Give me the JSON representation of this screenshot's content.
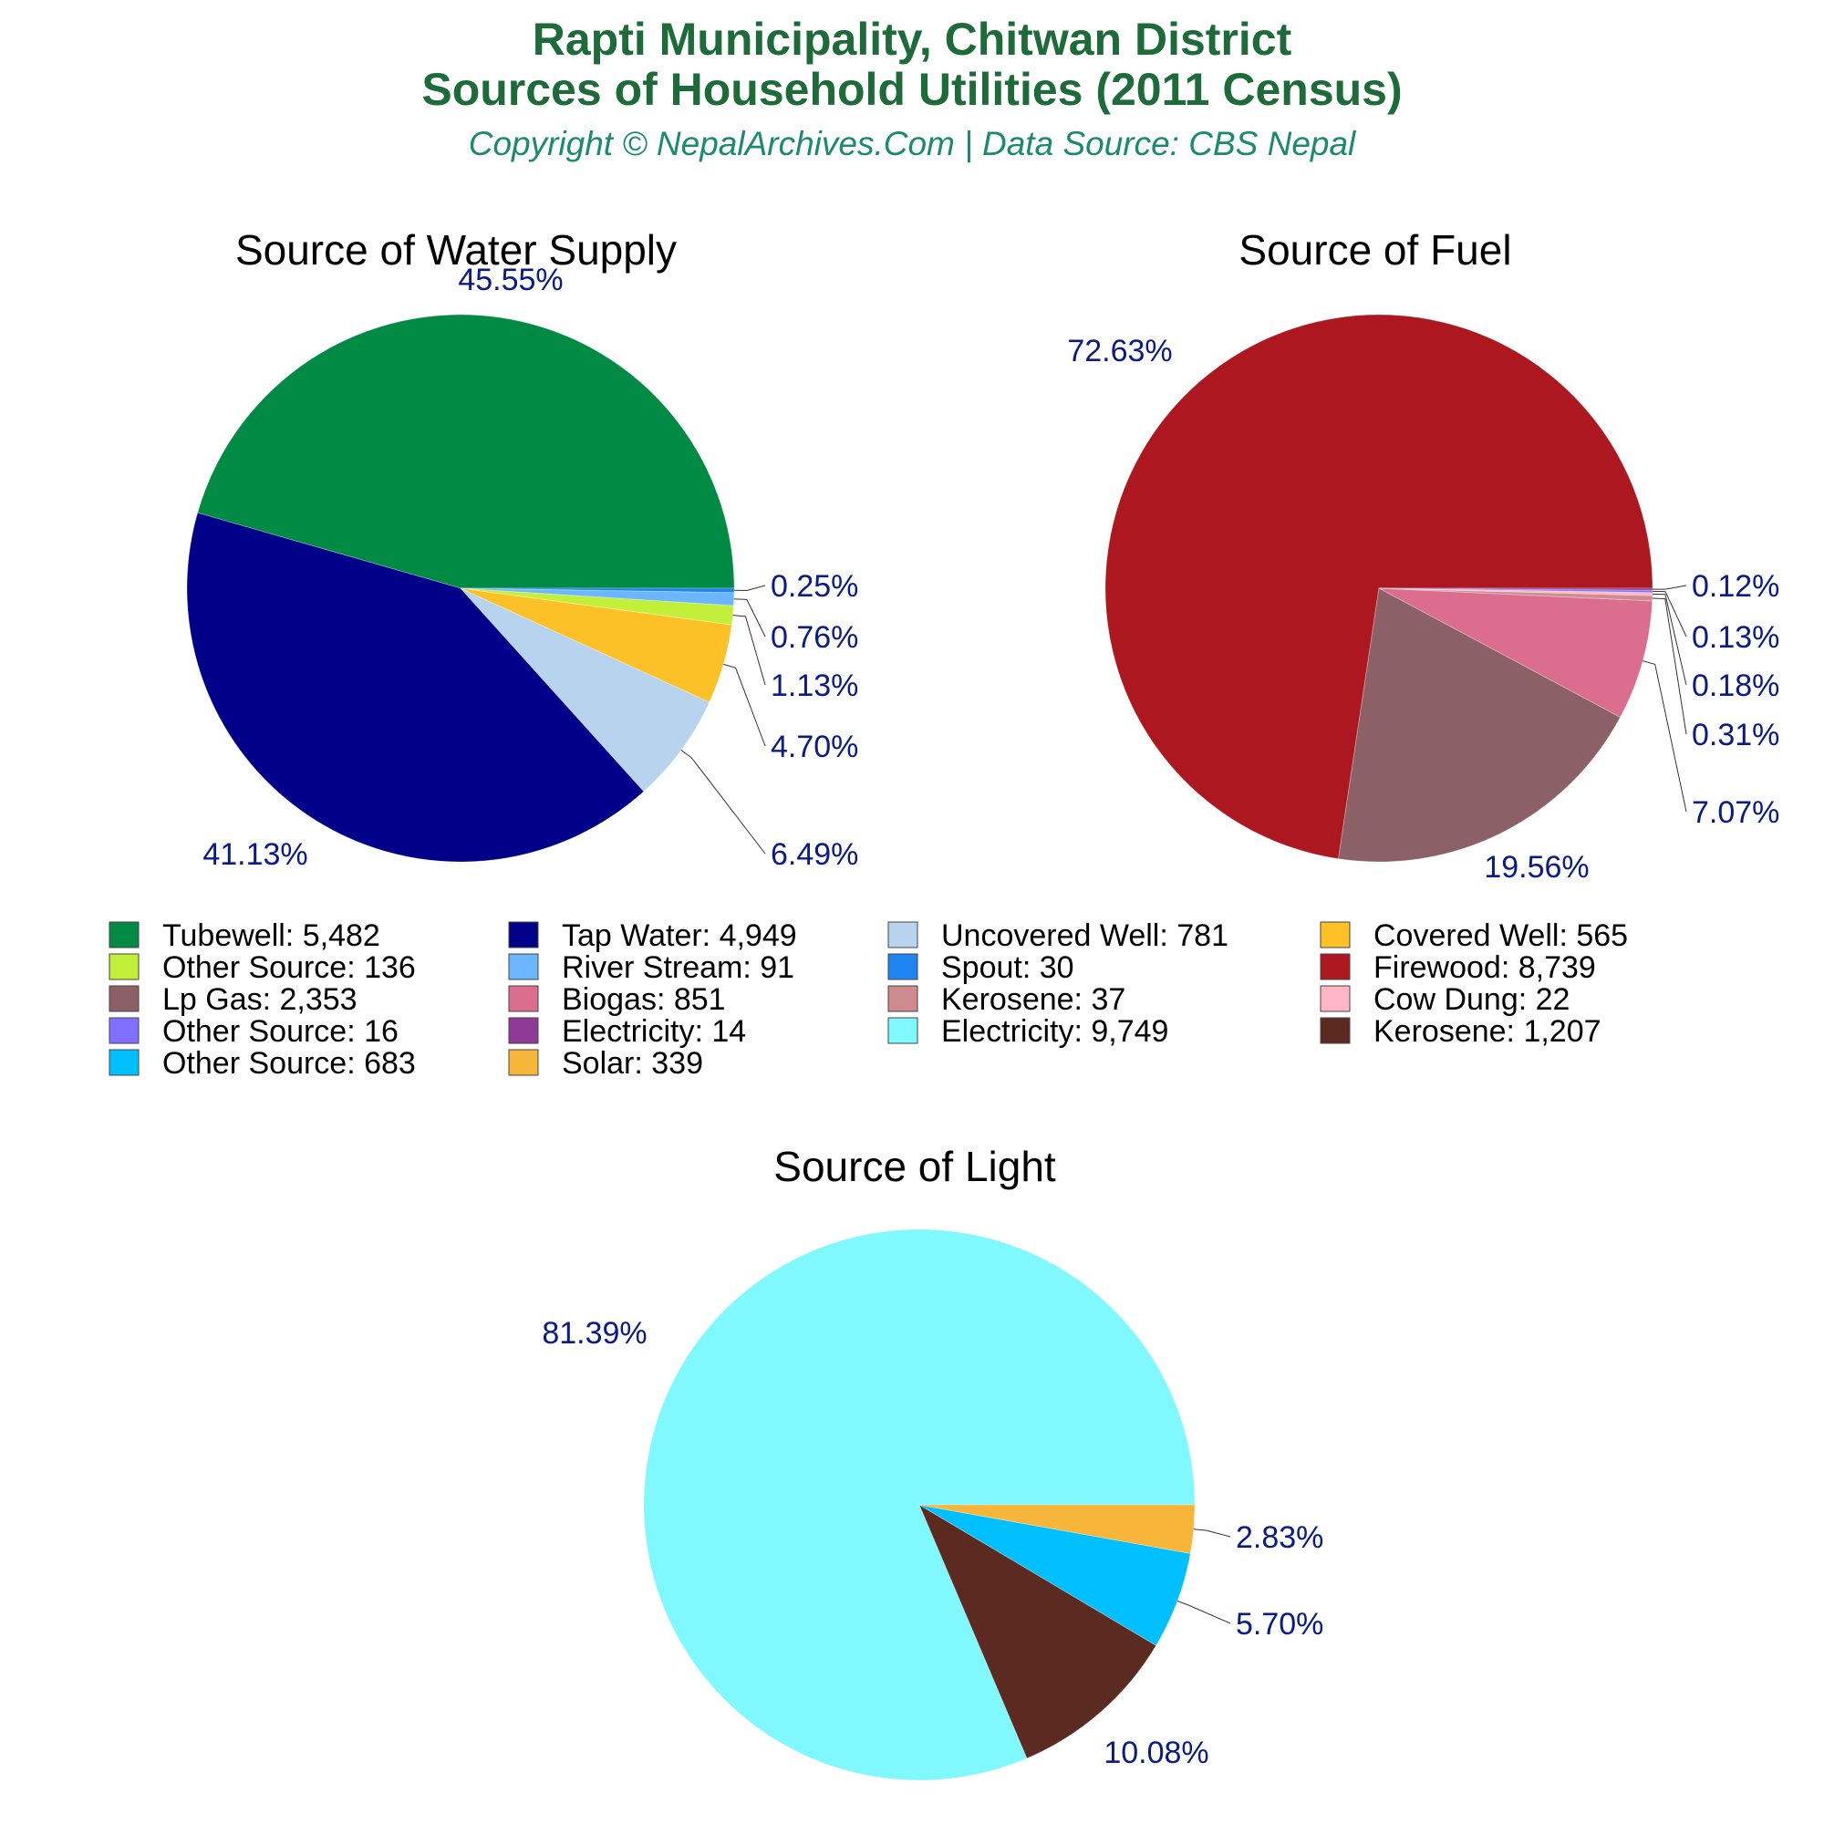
{
  "header": {
    "title_line1": "Rapti Municipality, Chitwan District",
    "title_line2": "Sources of Household Utilities (2011 Census)",
    "subtitle": "Copyright © NepalArchives.Com | Data Source: CBS Nepal"
  },
  "chart_data": [
    {
      "type": "pie",
      "title": "Source of Water Supply",
      "start_angle_deg": 0,
      "direction": "counterclockwise",
      "slices": [
        {
          "label": "Tubewell",
          "value": 5482,
          "pct_label": "45.55%",
          "color": "#008a44"
        },
        {
          "label": "Tap Water",
          "value": 4949,
          "pct_label": "41.13%",
          "color": "#000088"
        },
        {
          "label": "Uncovered Well",
          "value": 781,
          "pct_label": "6.49%",
          "color": "#b8d3ee"
        },
        {
          "label": "Covered Well",
          "value": 565,
          "pct_label": "4.70%",
          "color": "#fdc128"
        },
        {
          "label": "Other Source",
          "value": 136,
          "pct_label": "1.13%",
          "color": "#c2f03a"
        },
        {
          "label": "River Stream",
          "value": 91,
          "pct_label": "0.76%",
          "color": "#6bb6ff"
        },
        {
          "label": "Spout",
          "value": 30,
          "pct_label": "0.25%",
          "color": "#1e84f0"
        }
      ]
    },
    {
      "type": "pie",
      "title": "Source of Fuel",
      "start_angle_deg": 0,
      "direction": "counterclockwise",
      "slices": [
        {
          "label": "Firewood",
          "value": 8739,
          "pct_label": "72.63%",
          "color": "#ad1820"
        },
        {
          "label": "Lp Gas",
          "value": 2353,
          "pct_label": "19.56%",
          "color": "#8b6066"
        },
        {
          "label": "Biogas",
          "value": 851,
          "pct_label": "7.07%",
          "color": "#db6e8e"
        },
        {
          "label": "Kerosene",
          "value": 37,
          "pct_label": "0.31%",
          "color": "#cf8c90"
        },
        {
          "label": "Cow Dung",
          "value": 22,
          "pct_label": "0.18%",
          "color": "#ffb6c6"
        },
        {
          "label": "Other Source",
          "value": 16,
          "pct_label": "0.13%",
          "color": "#8170ff"
        },
        {
          "label": "Electricity",
          "value": 14,
          "pct_label": "0.12%",
          "color": "#8e3a96"
        }
      ]
    },
    {
      "type": "pie",
      "title": "Source of Light",
      "start_angle_deg": 0,
      "direction": "counterclockwise",
      "slices": [
        {
          "label": "Electricity",
          "value": 9749,
          "pct_label": "81.39%",
          "color": "#7ff8ff"
        },
        {
          "label": "Kerosene",
          "value": 1207,
          "pct_label": "10.08%",
          "color": "#5b2a20"
        },
        {
          "label": "Other Source",
          "value": 683,
          "pct_label": "5.70%",
          "color": "#00bfff"
        },
        {
          "label": "Solar",
          "value": 339,
          "pct_label": "2.83%",
          "color": "#f7b53a"
        }
      ]
    }
  ],
  "legend": {
    "columns": 4,
    "items": [
      {
        "text": "Tubewell: 5,482",
        "color": "#008a44"
      },
      {
        "text": "Tap Water: 4,949",
        "color": "#000088"
      },
      {
        "text": "Uncovered Well: 781",
        "color": "#b8d3ee"
      },
      {
        "text": "Covered Well: 565",
        "color": "#fdc128"
      },
      {
        "text": "Other Source: 136",
        "color": "#c2f03a"
      },
      {
        "text": "River Stream: 91",
        "color": "#6bb6ff"
      },
      {
        "text": "Spout: 30",
        "color": "#1e84f0"
      },
      {
        "text": "Firewood: 8,739",
        "color": "#ad1820"
      },
      {
        "text": "Lp Gas: 2,353",
        "color": "#8b6066"
      },
      {
        "text": "Biogas: 851",
        "color": "#db6e8e"
      },
      {
        "text": "Kerosene: 37",
        "color": "#cf8c90"
      },
      {
        "text": "Cow Dung: 22",
        "color": "#ffb6c6"
      },
      {
        "text": "Other Source: 16",
        "color": "#8170ff"
      },
      {
        "text": "Electricity: 14",
        "color": "#8e3a96"
      },
      {
        "text": "Electricity: 9,749",
        "color": "#7ff8ff"
      },
      {
        "text": "Kerosene: 1,207",
        "color": "#5b2a20"
      },
      {
        "text": "Other Source: 683",
        "color": "#00bfff"
      },
      {
        "text": "Solar: 339",
        "color": "#f7b53a"
      }
    ]
  },
  "colors": {
    "title": "#1e6b3a",
    "subtitle": "#1a8a70",
    "percent_label": "#0a1a86",
    "leader_line": "#333333"
  }
}
